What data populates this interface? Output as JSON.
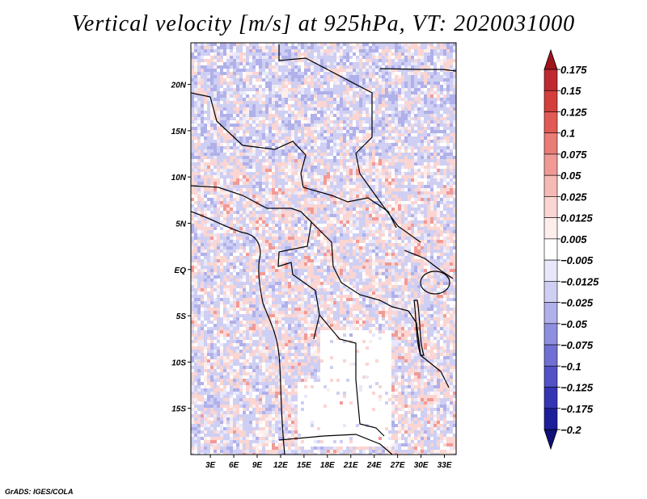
{
  "chart_data": {
    "type": "heatmap",
    "title": "Vertical velocity [m/s] at 925hPa, VT: 2020031000",
    "variable": "Vertical velocity",
    "units": "m/s",
    "level": "925hPa",
    "valid_time": "2020031000",
    "x_axis": {
      "ticks": [
        3,
        6,
        9,
        12,
        15,
        18,
        21,
        24,
        27,
        30,
        33
      ],
      "tick_labels": [
        "3E",
        "6E",
        "9E",
        "12E",
        "15E",
        "18E",
        "21E",
        "24E",
        "27E",
        "30E",
        "33E"
      ],
      "range": [
        0.5,
        34.5
      ]
    },
    "y_axis": {
      "ticks": [
        20,
        15,
        10,
        5,
        0,
        -5,
        -10,
        -15
      ],
      "tick_labels": [
        "20N",
        "15N",
        "10N",
        "5N",
        "EQ",
        "5S",
        "10S",
        "15S"
      ],
      "range": [
        -20,
        24.5
      ]
    },
    "colorbar": {
      "levels": [
        "0.175",
        "0.15",
        "0.125",
        "0.1",
        "0.075",
        "0.05",
        "0.025",
        "0.0125",
        "0.005",
        "−0.005",
        "−0.0125",
        "−0.025",
        "−0.05",
        "−0.075",
        "−0.1",
        "−0.125",
        "−0.175",
        "−0.2"
      ],
      "colors": [
        "#a0141e",
        "#be2a30",
        "#d33f3c",
        "#e15a55",
        "#ea7c76",
        "#f19a95",
        "#f6b9b5",
        "#fad5d2",
        "#fdeeec",
        "#ffffff",
        "#e8e8fa",
        "#cfcff3",
        "#b0b0ea",
        "#8f8fdf",
        "#7070d4",
        "#5252c6",
        "#3535b4",
        "#1e1e9a",
        "#10107a"
      ]
    }
  },
  "credit": "GrADS: IGES/COLA"
}
